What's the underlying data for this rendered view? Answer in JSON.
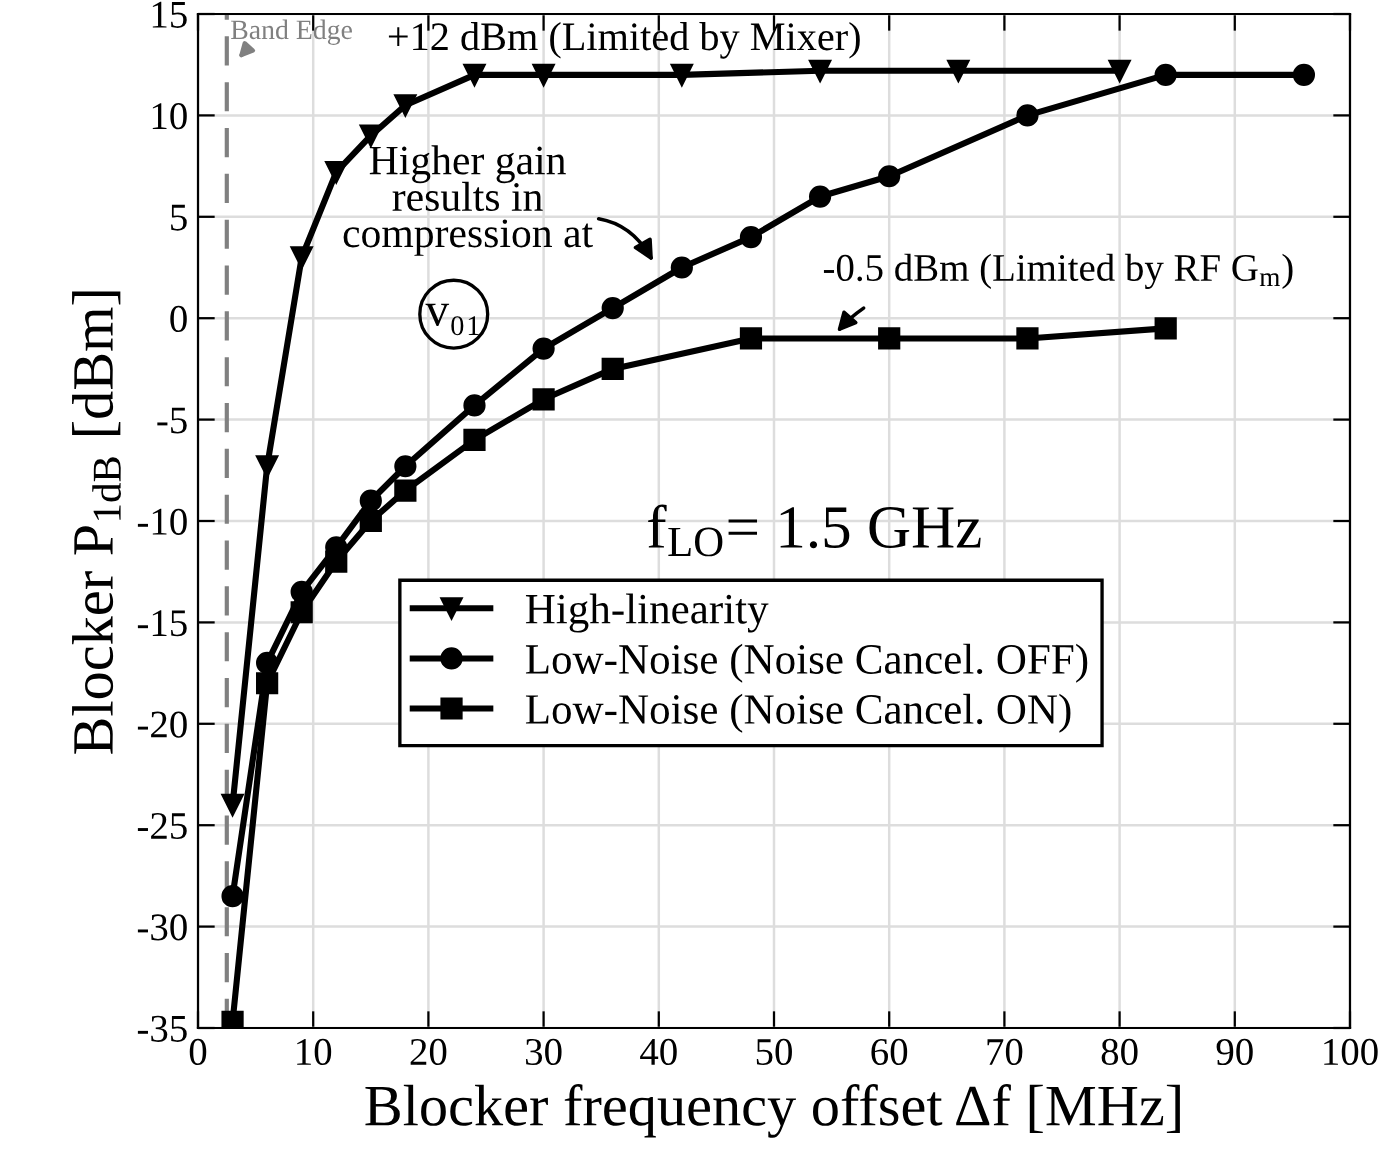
{
  "chart_data": {
    "type": "line",
    "xlabel": "Blocker frequency offset Δf [MHz]",
    "ylabel": "Blocker P$_{1dB}$ [dBm]",
    "xlim": [
      0,
      100
    ],
    "xticks": [
      0,
      10,
      20,
      30,
      40,
      50,
      60,
      70,
      80,
      90,
      100
    ],
    "ylim": [
      -35,
      15
    ],
    "yticks": [
      -35,
      -30,
      -25,
      -20,
      -15,
      -10,
      -5,
      0,
      5,
      10,
      15
    ],
    "grid": true,
    "legend": "center",
    "line_style": "solid",
    "series": [
      {
        "name": "High-linearity",
        "color": "#000000",
        "marker": "triangle",
        "x": [
          3,
          6,
          9,
          12,
          15,
          18,
          24,
          30,
          42,
          54,
          66,
          80
        ],
        "values": [
          -24,
          -7.3,
          3,
          7.2,
          9,
          10.5,
          12,
          12,
          12,
          12.2,
          12.2,
          12.2
        ]
      },
      {
        "name": "Low-Noise (Noise Cancel. OFF)",
        "color": "#000000",
        "marker": "circle",
        "x": [
          3,
          6,
          9,
          12,
          15,
          18,
          24,
          30,
          36,
          42,
          48,
          54,
          60,
          72,
          84,
          96
        ],
        "values": [
          -28.5,
          -17,
          -13.5,
          -11.3,
          -9,
          -7.3,
          -4.3,
          -1.5,
          0.5,
          2.5,
          4,
          6,
          7,
          10,
          12,
          12
        ]
      },
      {
        "name": "Low-Noise (Noise Cancel. ON)",
        "color": "#000000",
        "marker": "square",
        "x": [
          3,
          6,
          9,
          12,
          15,
          18,
          24,
          30,
          36,
          48,
          60,
          72,
          84
        ],
        "values": [
          -34.7,
          -18,
          -14.5,
          -12,
          -10,
          -8.5,
          -6,
          -4,
          -2.5,
          -1,
          -1,
          -1,
          -0.5
        ]
      }
    ],
    "ref_lines": [
      {
        "axis": "x",
        "value": 2.5,
        "label": "Band Edge",
        "color": "#808080",
        "line_style": "dashed"
      }
    ],
    "annotations": [
      "+12 dBm (Limited by Mixer)",
      "Higher gain\nresults in\ncompression at",
      "v₀₁",
      {
        "text": "-0.5 dBm (Limited by RF G$_{m}$)",
        "x": 55,
        "y": -1
      },
      "f$_{LO}$= 1.5 GHz"
    ]
  }
}
